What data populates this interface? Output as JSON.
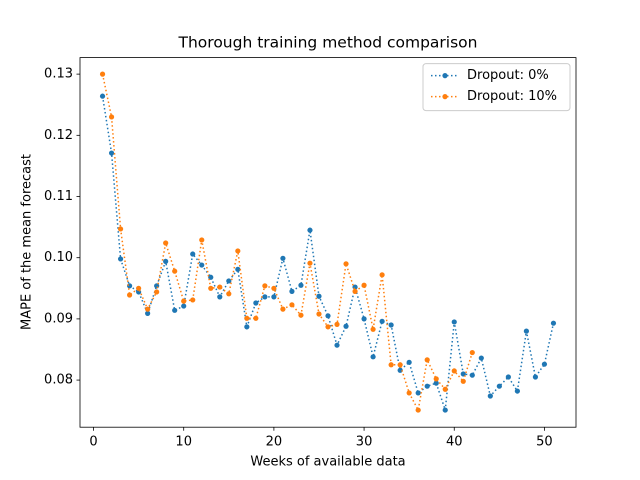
{
  "chart_data": {
    "type": "line",
    "title": "Thorough training method comparison",
    "xlabel": "Weeks of available data",
    "ylabel": "MAPE of the mean forecast",
    "x": [
      1,
      2,
      3,
      4,
      5,
      6,
      7,
      8,
      9,
      10,
      11,
      12,
      13,
      14,
      15,
      16,
      17,
      18,
      19,
      20,
      21,
      22,
      23,
      24,
      25,
      26,
      27,
      28,
      29,
      30,
      31,
      32,
      33,
      34,
      35,
      36,
      37,
      38,
      39,
      40,
      41,
      42,
      43,
      44,
      45,
      46,
      47,
      48,
      49,
      50,
      51
    ],
    "series": [
      {
        "name": "Dropout: 0%",
        "color": "#1f77b4",
        "values": [
          0.1264,
          0.1171,
          0.0998,
          0.0954,
          0.0944,
          0.0909,
          0.0954,
          0.0994,
          0.0914,
          0.0921,
          0.1006,
          0.0988,
          0.0968,
          0.0936,
          0.0962,
          0.0981,
          0.0887,
          0.0926,
          0.0936,
          0.0936,
          0.0999,
          0.0945,
          0.0955,
          0.1045,
          0.0937,
          0.0905,
          0.0857,
          0.0888,
          0.0952,
          0.09,
          0.0838,
          0.0896,
          0.089,
          0.0816,
          0.0829,
          0.0779,
          0.079,
          0.0795,
          0.0751,
          0.0895,
          0.081,
          0.0808,
          0.0836,
          0.0774,
          0.079,
          0.0805,
          0.0782,
          0.088,
          0.0805,
          0.0826,
          0.0893
        ]
      },
      {
        "name": "Dropout: 10%",
        "color": "#ff7f0e",
        "values": [
          0.13,
          0.123,
          0.1047,
          0.0939,
          0.095,
          0.0916,
          0.0944,
          0.1024,
          0.0978,
          0.0929,
          0.0931,
          0.1029,
          0.095,
          0.0952,
          0.0941,
          0.1011,
          0.0901,
          0.0901,
          0.0954,
          0.095,
          0.0916,
          0.0923,
          0.0906,
          0.0991,
          0.0908,
          0.0887,
          0.0891,
          0.099,
          0.0945,
          0.0955,
          0.0883,
          0.0972,
          0.0825,
          0.0825,
          0.0779,
          0.0751,
          0.0833,
          0.0802,
          0.0785,
          0.0815,
          0.0798,
          0.0845,
          null,
          null,
          null,
          null,
          null,
          null,
          null,
          null,
          null
        ]
      }
    ],
    "xlim": [
      -1.5,
      53.5
    ],
    "xticks": [
      0,
      10,
      20,
      30,
      40,
      50
    ],
    "ylim": [
      0.0723,
      0.1327
    ],
    "yticks": [
      0.08,
      0.09,
      {
        "value": 0.1,
        "label": "0.10"
      },
      0.11,
      0.12,
      0.13
    ],
    "legend": "upper right",
    "line_style": "dotted",
    "marker": "circle"
  }
}
